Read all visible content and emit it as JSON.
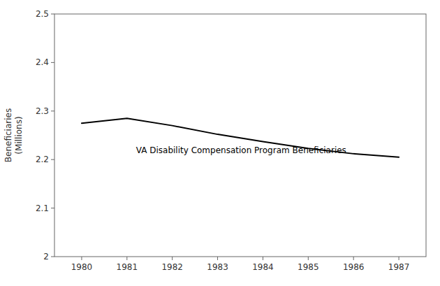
{
  "chart_data": {
    "type": "line",
    "x": [
      1980,
      1981,
      1982,
      1983,
      1984,
      1985,
      1986,
      1987
    ],
    "values": [
      2.275,
      2.285,
      2.27,
      2.252,
      2.237,
      2.223,
      2.212,
      2.205
    ],
    "color": "#000000",
    "y_label": "Beneficiaries\n(Millions)",
    "annotations": [
      {
        "text": "VA Disability Compensation Program Beneficiaries",
        "x": 1981.2,
        "y": 2.213
      }
    ],
    "xlim": [
      1979.4,
      1987.6
    ],
    "ylim": [
      2.0,
      2.5
    ],
    "xticks": [
      1980,
      1981,
      1982,
      1983,
      1984,
      1985,
      1986,
      1987
    ],
    "yticks": [
      2.0,
      2.1,
      2.2,
      2.3,
      2.4,
      2.5
    ],
    "grid": false
  }
}
